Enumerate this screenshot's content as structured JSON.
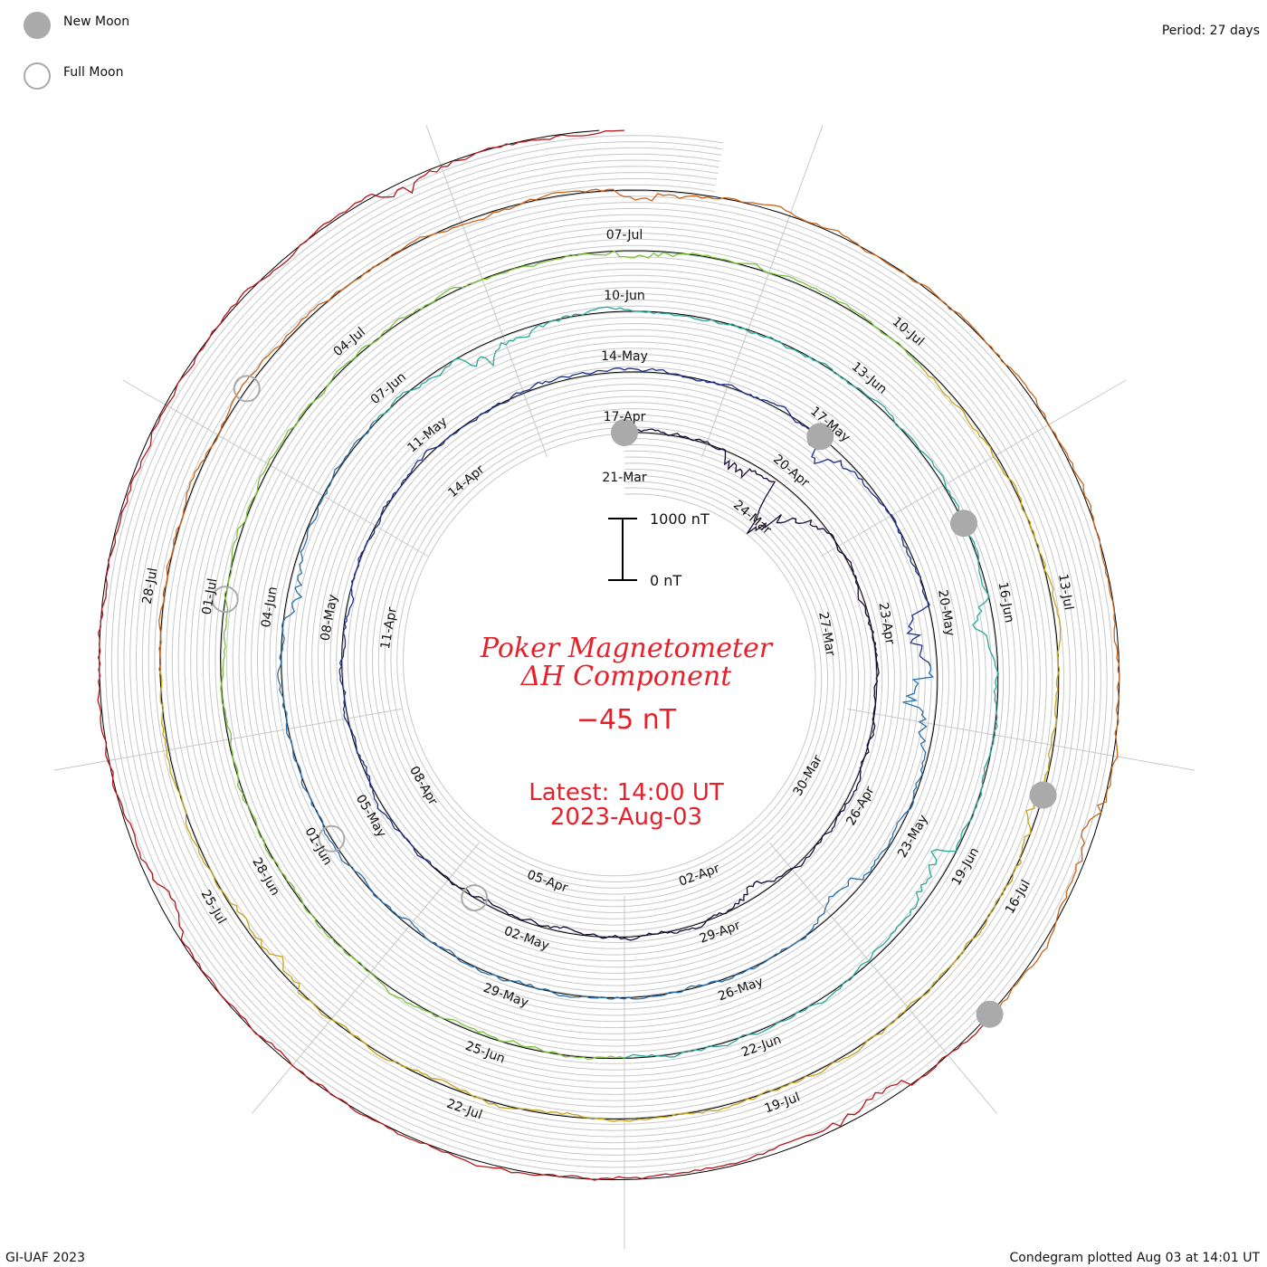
{
  "legend": {
    "new_moon_label": "New Moon",
    "full_moon_label": "Full Moon"
  },
  "period_label": "Period: 27 days",
  "footer": {
    "left": "GI-UAF 2023",
    "right": "Condegram plotted Aug 03 at 14:01 UT"
  },
  "center": {
    "title_line1": "Poker Magnetometer",
    "title_line2": "ΔH Component",
    "current_value": "−45 nT",
    "latest_line1": "Latest: 14:00 UT",
    "latest_line2": "2023-Aug-03",
    "scale_top": "1000 nT",
    "scale_bottom": "0 nT"
  },
  "colors": {
    "title": "#e8202a",
    "grid": "#c8c8c8",
    "baseline": "#000000",
    "moon_fill": "#aaaaaa",
    "moon_stroke": "#aaaaaa"
  },
  "chart_data": {
    "type": "line",
    "subtype": "spiral condegram",
    "period_days": 27,
    "start_date": "2023-03-21",
    "end_date": "2023-08-03",
    "series_colors": [
      "#1a0a3a",
      "#1d2f8f",
      "#2a6fae",
      "#2aa79a",
      "#7cc23a",
      "#c8a418",
      "#c9641a",
      "#b8161a"
    ],
    "ring_labels": [
      [
        "21-Mar",
        "24-Mar",
        "27-Mar",
        "30-Mar",
        "02-Apr",
        "05-Apr",
        "08-Apr",
        "11-Apr",
        "14-Apr"
      ],
      [
        "17-Apr",
        "20-Apr",
        "23-Apr",
        "26-Apr",
        "29-Apr",
        "02-May",
        "05-May",
        "08-May",
        "11-May"
      ],
      [
        "14-May",
        "17-May",
        "20-May",
        "23-May",
        "26-May",
        "29-May",
        "01-Jun",
        "04-Jun",
        "07-Jun"
      ],
      [
        "10-Jun",
        "13-Jun",
        "16-Jun",
        "19-Jun",
        "22-Jun",
        "25-Jun",
        "28-Jun",
        "01-Jul",
        "04-Jul"
      ],
      [
        "07-Jul",
        "10-Jul",
        "13-Jul",
        "16-Jul",
        "19-Jul",
        "22-Jul",
        "25-Jul",
        "28-Jul"
      ]
    ],
    "new_moons": [
      "2023-03-21",
      "2023-04-20",
      "2023-05-19",
      "2023-06-18",
      "2023-07-17"
    ],
    "full_moons": [
      "2023-04-06",
      "2023-05-05",
      "2023-06-04",
      "2023-07-03"
    ],
    "disturbances_nT": [
      {
        "date": "2023-03-23",
        "value": -350
      },
      {
        "date": "2023-03-24",
        "value": -800
      },
      {
        "date": "2023-04-01",
        "value": -200
      },
      {
        "date": "2023-04-20",
        "value": -300
      },
      {
        "date": "2023-04-23",
        "value": -450
      },
      {
        "date": "2023-04-24",
        "value": -500
      },
      {
        "date": "2023-04-27",
        "value": -250
      },
      {
        "date": "2023-05-08",
        "value": -220
      },
      {
        "date": "2023-05-12",
        "value": -300
      },
      {
        "date": "2023-05-20",
        "value": -280
      },
      {
        "date": "2023-05-23",
        "value": -350
      },
      {
        "date": "2023-06-10",
        "value": -120
      },
      {
        "date": "2023-06-18",
        "value": -200
      },
      {
        "date": "2023-06-27",
        "value": -180
      },
      {
        "date": "2023-07-07",
        "value": -150
      },
      {
        "date": "2023-07-15",
        "value": -200
      },
      {
        "date": "2023-07-18",
        "value": -300
      },
      {
        "date": "2023-07-25",
        "value": -250
      },
      {
        "date": "2023-08-01",
        "value": -220
      }
    ],
    "ylim_nT": [
      0,
      1000
    ]
  }
}
